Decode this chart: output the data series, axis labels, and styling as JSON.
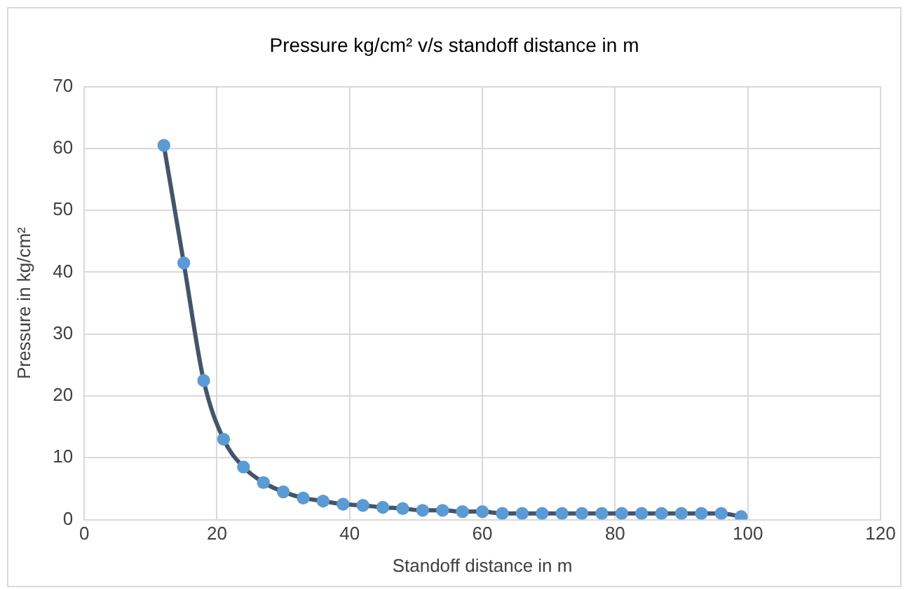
{
  "chart_data": {
    "type": "line",
    "title": "Pressure kg/cm² v/s standoff distance in m",
    "xlabel": "Standoff distance in m",
    "ylabel": "Pressure in kg/cm²",
    "x": [
      12,
      15,
      18,
      21,
      24,
      27,
      30,
      33,
      36,
      39,
      42,
      45,
      48,
      51,
      54,
      57,
      60,
      63,
      66,
      69,
      72,
      75,
      78,
      81,
      84,
      87,
      90,
      93,
      96,
      99
    ],
    "series": [
      {
        "color": "#44546a",
        "colors": [
          "#5b9bd5",
          "#5b9bd5",
          "#5b9bd5",
          "#5b9bd5",
          "#5b9bd5",
          "#5b9bd5",
          "#5b9bd5",
          "#5b9bd5",
          "#5b9bd5",
          "#5b9bd5",
          "#5b9bd5",
          "#5b9bd5",
          "#5b9bd5",
          "#5b9bd5",
          "#5b9bd5",
          "#5b9bd5",
          "#5b9bd5",
          "#5b9bd5",
          "#5b9bd5",
          "#5b9bd5",
          "#5b9bd5",
          "#5b9bd5",
          "#5b9bd5",
          "#5b9bd5",
          "#5b9bd5",
          "#5b9bd5",
          "#5b9bd5",
          "#5b9bd5",
          "#5b9bd5",
          "#5b9bd5"
        ],
        "values": [
          60.5,
          41.5,
          22.5,
          13,
          8.5,
          6,
          4.5,
          3.5,
          3,
          2.5,
          2.3,
          2,
          1.8,
          1.5,
          1.5,
          1.3,
          1.3,
          1,
          1,
          1,
          1,
          1,
          1,
          1,
          1,
          1,
          1,
          1,
          1,
          0.5
        ]
      }
    ],
    "xlim": [
      0,
      120
    ],
    "xticks": [
      0,
      20,
      40,
      60,
      80,
      100,
      120
    ],
    "ylim": [
      0,
      70
    ],
    "yticks": [
      0,
      10,
      20,
      30,
      40,
      50,
      60,
      70
    ],
    "grid": true,
    "legend": false,
    "marker": "circle",
    "line_style": "solid"
  }
}
